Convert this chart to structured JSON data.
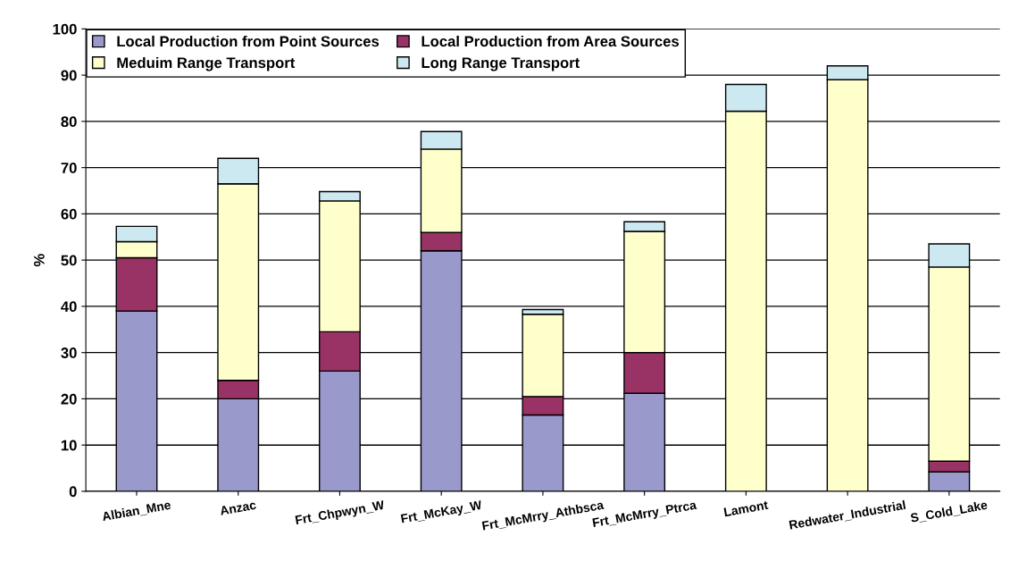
{
  "chart_data": {
    "type": "bar",
    "stacked": true,
    "ylabel": "%",
    "categories": [
      "Albian_Mne",
      "Anzac",
      "Frt_Chpwyn_W",
      "Frt_McKay_W",
      "Frt_McMrry_Athbsca",
      "Frt_McMrry_Ptrca",
      "Lamont",
      "Redwater_Industrial",
      "S_Cold_Lake"
    ],
    "series": [
      {
        "name": "Local Production from Point Sources",
        "color": "#9999cc",
        "values": [
          39,
          20,
          26,
          52,
          16.5,
          21.2,
          0,
          0,
          4.2
        ]
      },
      {
        "name": "Local Production from Area Sources",
        "color": "#993366",
        "values": [
          11.5,
          4,
          8.5,
          4,
          4,
          8.8,
          0,
          0,
          2.3
        ]
      },
      {
        "name": "Meduim Range Transport",
        "color": "#ffffcc",
        "values": [
          3.5,
          42.5,
          28.3,
          18,
          17.8,
          26.2,
          82.2,
          89,
          42
        ]
      },
      {
        "name": "Long Range Transport",
        "color": "#cce8f0",
        "values": [
          3.3,
          5.5,
          2,
          3.8,
          1,
          2.1,
          5.8,
          3,
          5
        ]
      }
    ],
    "ylim": [
      0,
      100
    ],
    "yticks": [
      0,
      10,
      20,
      30,
      40,
      50,
      60,
      70,
      80,
      90,
      100
    ],
    "grid": "y",
    "legend": "top left"
  }
}
